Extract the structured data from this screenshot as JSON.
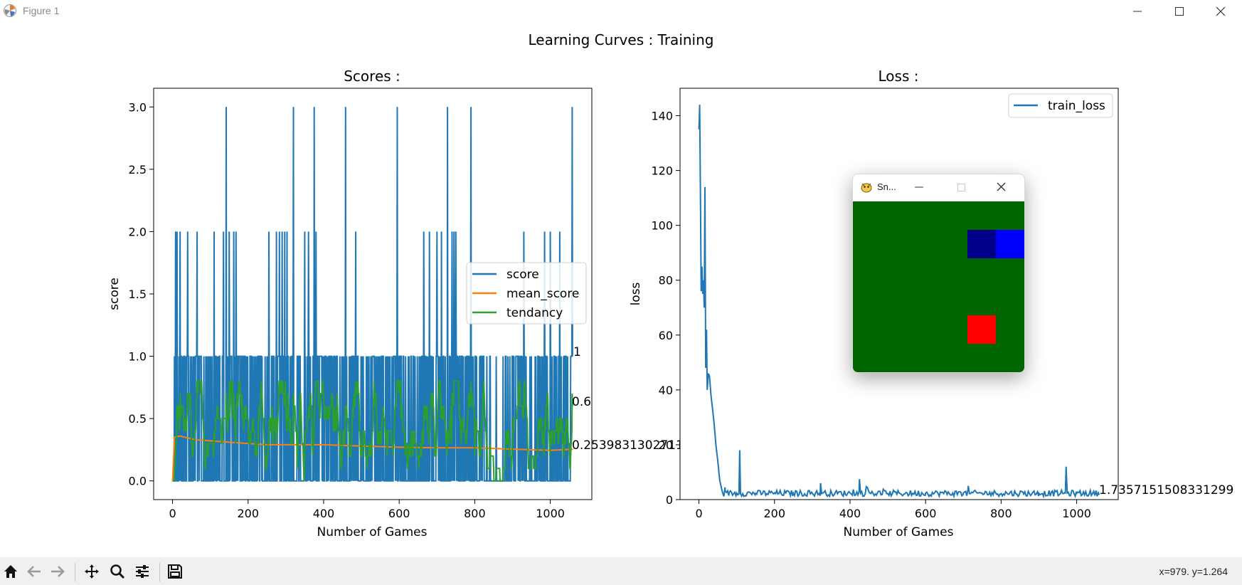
{
  "window": {
    "title": "Figure 1",
    "app_icon": "matplotlib-icon",
    "controls": [
      "minimize-icon",
      "maximize-icon",
      "close-icon"
    ]
  },
  "figure": {
    "suptitle": "Learning Curves : Training"
  },
  "scores_panel": {
    "title": "Scores :",
    "xlabel": "Number of Games",
    "ylabel": "score",
    "legend": [
      "score",
      "mean_score",
      "tendancy"
    ],
    "end_labels": {
      "score": "1",
      "tendancy": "0.6",
      "mean_score": "0.2539831302711"
    }
  },
  "loss_panel": {
    "title": "Loss :",
    "xlabel": "Number of Games",
    "ylabel": "loss",
    "legend": [
      "train_loss"
    ],
    "end_label": "1.7357151508331299"
  },
  "snake_window": {
    "title": "Sn...",
    "icon": "pygame-icon",
    "controls": [
      "minimize-icon",
      "maximize-icon",
      "close-icon"
    ],
    "colors": {
      "board": "#006400",
      "snake_head": "#0000ff",
      "snake_body": "#00008b",
      "food": "#ff0000"
    }
  },
  "toolbar": {
    "buttons": [
      "home-icon",
      "back-icon",
      "forward-icon",
      "pan-icon",
      "zoom-icon",
      "configure-icon",
      "save-icon"
    ],
    "coords": "x=979. y=1.264"
  },
  "chart_data": [
    {
      "type": "line",
      "title": "Scores :",
      "xlabel": "Number of Games",
      "ylabel": "score",
      "xlim": [
        -50,
        1110
      ],
      "ylim": [
        -0.15,
        3.15
      ],
      "xticks": [
        0,
        200,
        400,
        600,
        800,
        1000
      ],
      "yticks": [
        0.0,
        0.5,
        1.0,
        1.5,
        2.0,
        2.5,
        3.0
      ],
      "legend_position": "center-right",
      "series": [
        {
          "name": "score",
          "color": "#1f77b4",
          "n_games": 1060,
          "max_value_at": [
            142,
            320,
            375,
            458,
            595,
            728,
            790,
            1058
          ],
          "two_value_at": [
            8,
            12,
            20,
            40,
            65,
            110,
            135,
            150,
            162,
            168,
            255,
            275,
            283,
            290,
            297,
            303,
            350,
            360,
            380,
            485,
            665,
            680,
            700,
            712,
            740,
            745,
            750,
            930,
            985,
            1000,
            1025
          ],
          "value_range": [
            0,
            3
          ],
          "last": 1
        },
        {
          "name": "mean_score",
          "color": "#ff7f0e",
          "points": [
            [
              0,
              0
            ],
            [
              5,
              0.35
            ],
            [
              20,
              0.36
            ],
            [
              60,
              0.33
            ],
            [
              150,
              0.31
            ],
            [
              250,
              0.29
            ],
            [
              400,
              0.29
            ],
            [
              500,
              0.28
            ],
            [
              600,
              0.27
            ],
            [
              700,
              0.265
            ],
            [
              800,
              0.265
            ],
            [
              900,
              0.255
            ],
            [
              1000,
              0.245
            ],
            [
              1060,
              0.254
            ]
          ],
          "last": 0.2539831302711
        },
        {
          "name": "tendancy",
          "color": "#2ca02c",
          "value_range": [
            0,
            0.8
          ],
          "last": 0.6
        }
      ]
    },
    {
      "type": "line",
      "title": "Loss :",
      "xlabel": "Number of Games",
      "ylabel": "loss",
      "xlim": [
        -50,
        1110
      ],
      "ylim": [
        0,
        150
      ],
      "xticks": [
        0,
        200,
        400,
        600,
        800,
        1000
      ],
      "yticks": [
        0,
        20,
        40,
        60,
        80,
        100,
        120,
        140
      ],
      "legend_position": "upper-right",
      "series": [
        {
          "name": "train_loss",
          "color": "#1f77b4",
          "points": [
            [
              0,
              135
            ],
            [
              2,
              144
            ],
            [
              4,
              110
            ],
            [
              6,
              76
            ],
            [
              8,
              85
            ],
            [
              10,
              75
            ],
            [
              12,
              80
            ],
            [
              14,
              70
            ],
            [
              16,
              114
            ],
            [
              18,
              48
            ],
            [
              20,
              62
            ],
            [
              22,
              40
            ],
            [
              25,
              46
            ],
            [
              28,
              45
            ],
            [
              32,
              38
            ],
            [
              36,
              33
            ],
            [
              40,
              28
            ],
            [
              45,
              20
            ],
            [
              50,
              14
            ],
            [
              55,
              7
            ],
            [
              60,
              4
            ],
            [
              70,
              3
            ],
            [
              80,
              2.5
            ],
            [
              100,
              2.4
            ],
            [
              108,
              18
            ],
            [
              110,
              2.2
            ],
            [
              150,
              2.3
            ],
            [
              200,
              2.5
            ],
            [
              250,
              2.4
            ],
            [
              300,
              2.3
            ],
            [
              322,
              6
            ],
            [
              325,
              2.2
            ],
            [
              400,
              2.4
            ],
            [
              425,
              7.5
            ],
            [
              428,
              2.3
            ],
            [
              500,
              2.2
            ],
            [
              600,
              2.4
            ],
            [
              700,
              2.4
            ],
            [
              713,
              5
            ],
            [
              716,
              2.2
            ],
            [
              800,
              2.2
            ],
            [
              900,
              2.3
            ],
            [
              970,
              2.2
            ],
            [
              972,
              12
            ],
            [
              975,
              2.4
            ],
            [
              1000,
              2.3
            ],
            [
              1060,
              1.74
            ]
          ],
          "last": 1.7357151508331299
        }
      ]
    }
  ]
}
